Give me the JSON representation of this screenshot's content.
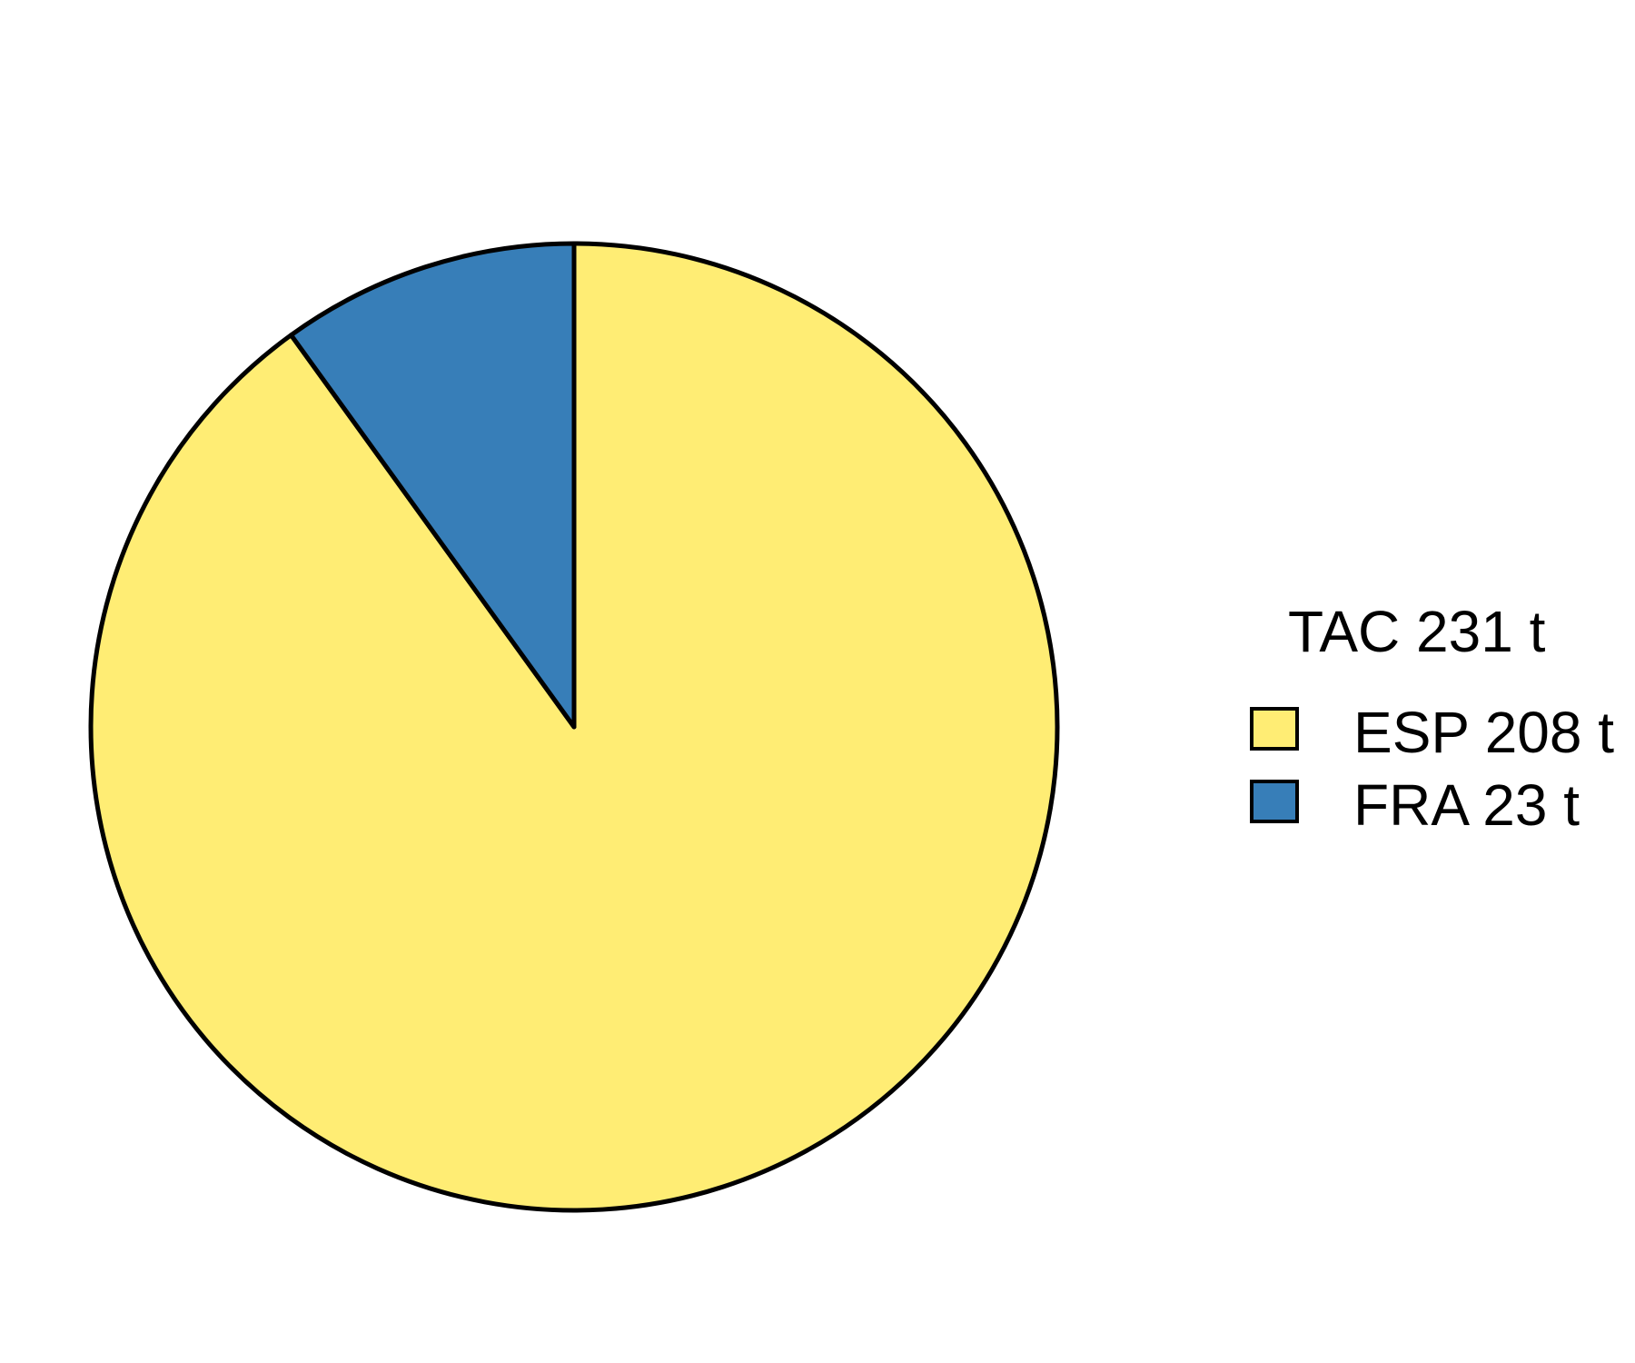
{
  "chart_data": {
    "type": "pie",
    "title": "",
    "legend": {
      "title": "TAC 231 t",
      "position": "right",
      "entries": [
        "ESP 208 t",
        "FRA 23 t"
      ]
    },
    "categories": [
      "ESP",
      "FRA"
    ],
    "values": [
      208,
      23
    ],
    "unit": "t",
    "total": 231,
    "colors": [
      "#FFED74",
      "#377EB8"
    ],
    "outline_color": "#000000"
  }
}
